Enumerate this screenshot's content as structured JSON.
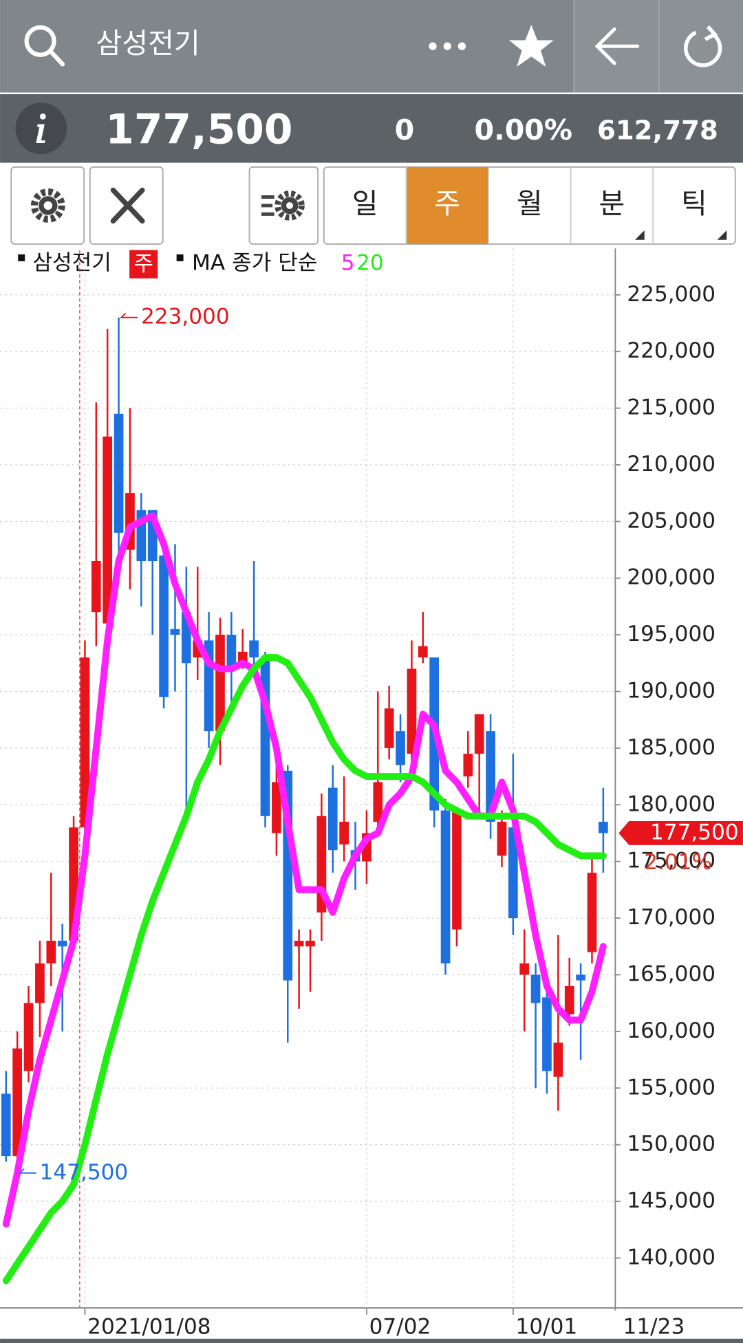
{
  "header": {
    "title": "삼성전기"
  },
  "quote": {
    "price": "177,500",
    "change": "0",
    "change_rate": "0.00%",
    "volume": "612,778"
  },
  "periods": [
    "일",
    "주",
    "월",
    "분",
    "틱"
  ],
  "selected_period_index": 1,
  "chart_data": {
    "type": "candlestick",
    "legend": {
      "symbol": "삼성전기",
      "period": "주",
      "ma_label": "MA 종가 단순"
    },
    "categories": [
      null,
      null,
      null,
      null,
      null,
      null,
      null,
      "2021/01/08",
      null,
      null,
      null,
      null,
      null,
      null,
      null,
      null,
      null,
      null,
      null,
      null,
      null,
      null,
      null,
      null,
      null,
      null,
      null,
      null,
      null,
      null,
      null,
      null,
      "07/02",
      null,
      null,
      null,
      null,
      null,
      null,
      null,
      null,
      null,
      null,
      null,
      null,
      "10/01",
      null,
      null,
      null,
      null,
      null,
      null,
      null,
      "11/23"
    ],
    "open": [
      154500,
      149000,
      156500,
      162500,
      166000,
      168000,
      168000,
      178000,
      197000,
      196000,
      214500,
      202500,
      206000,
      206000,
      202000,
      195500,
      197000,
      193000,
      194500,
      186500,
      195000,
      192500,
      194500,
      193000,
      177500,
      183000,
      167500,
      167500,
      170500,
      181500,
      176500,
      176000,
      175000,
      178500,
      185000,
      186500,
      184500,
      193000,
      193000,
      179500,
      169000,
      182500,
      184500,
      186500,
      175500,
      178000,
      165000,
      165000,
      163000,
      156000,
      161500,
      165000,
      167000,
      178500
    ],
    "high": [
      156500,
      160000,
      164000,
      168000,
      174000,
      169500,
      179000,
      194500,
      215500,
      222000,
      223000,
      215000,
      207500,
      206000,
      203500,
      203000,
      201000,
      201000,
      197000,
      196500,
      197000,
      195500,
      201500,
      193500,
      183500,
      183500,
      169000,
      169000,
      181000,
      183500,
      182500,
      178500,
      179500,
      190000,
      190500,
      188000,
      194500,
      197000,
      193000,
      180500,
      179500,
      186500,
      188000,
      188000,
      179500,
      184500,
      169000,
      166000,
      164500,
      168500,
      166500,
      166000,
      175500,
      181500
    ],
    "low": [
      148500,
      147500,
      155500,
      159500,
      164000,
      160000,
      167500,
      177000,
      194000,
      193000,
      201000,
      199000,
      197500,
      195000,
      188500,
      190000,
      179500,
      191000,
      185000,
      183500,
      189000,
      192000,
      191500,
      178000,
      175500,
      159000,
      162000,
      163500,
      168000,
      174000,
      175000,
      172500,
      173000,
      178000,
      184000,
      182000,
      183500,
      192500,
      178000,
      165000,
      167500,
      181500,
      179000,
      177000,
      174500,
      168500,
      160000,
      155000,
      154500,
      153000,
      160500,
      157500,
      166000,
      174000
    ],
    "close": [
      149000,
      158500,
      162500,
      166000,
      168000,
      167500,
      178000,
      193000,
      201500,
      212500,
      204000,
      207500,
      201500,
      201500,
      189500,
      195000,
      192500,
      194500,
      186500,
      195000,
      192000,
      193500,
      193000,
      179000,
      182000,
      164500,
      168000,
      168000,
      179000,
      176000,
      178500,
      175000,
      177500,
      182000,
      188500,
      183500,
      192000,
      194000,
      179500,
      166000,
      179500,
      184500,
      188000,
      178500,
      178500,
      170000,
      166000,
      162500,
      156500,
      159000,
      164000,
      164500,
      174000,
      177500
    ],
    "up_color": "#e8141c",
    "down_color": "#1e6fe0",
    "series": [
      {
        "name": "5",
        "color": "#ff1fff",
        "values": [
          143000,
          147500,
          153000,
          157500,
          161000,
          164500,
          168000,
          175500,
          185000,
          194500,
          201500,
          204500,
          205000,
          205500,
          203000,
          199500,
          197000,
          194500,
          192500,
          192000,
          192000,
          192500,
          192000,
          189000,
          185000,
          178500,
          172500,
          172500,
          172500,
          170500,
          173500,
          175500,
          177000,
          177500,
          180000,
          181000,
          182500,
          188000,
          187000,
          183000,
          182000,
          180500,
          179000,
          179000,
          182000,
          179500,
          174000,
          168500,
          164000,
          162000,
          161000,
          161000,
          163500,
          167500
        ]
      },
      {
        "name": "20",
        "color": "#22ee14",
        "values": [
          138000,
          139500,
          141000,
          142500,
          144000,
          145000,
          146500,
          150000,
          154000,
          158000,
          161500,
          165000,
          168500,
          171500,
          174000,
          176500,
          179000,
          182000,
          184000,
          186500,
          188500,
          190500,
          192000,
          193000,
          193000,
          192500,
          191000,
          189500,
          187500,
          185500,
          184000,
          183000,
          182500,
          182500,
          182500,
          182500,
          182500,
          182000,
          181000,
          180000,
          179500,
          179000,
          179000,
          179000,
          179000,
          179000,
          179000,
          178500,
          177500,
          176500,
          176000,
          175500,
          175500,
          175500
        ]
      }
    ],
    "ylim": [
      135600,
      229100
    ],
    "yticks": [
      {
        "value": 140000,
        "label": "140,000"
      },
      {
        "value": 145000,
        "label": "145,000"
      },
      {
        "value": 150000,
        "label": "150,000"
      },
      {
        "value": 155000,
        "label": "155,000"
      },
      {
        "value": 160000,
        "label": "160,000"
      },
      {
        "value": 165000,
        "label": "165,000"
      },
      {
        "value": 170000,
        "label": "170,000"
      },
      {
        "value": 175000,
        "label": "175,000"
      },
      {
        "value": 180000,
        "label": "180,000"
      },
      {
        "value": 185000,
        "label": "185,000"
      },
      {
        "value": 190000,
        "label": "190,000"
      },
      {
        "value": 195000,
        "label": "195,000"
      },
      {
        "value": 200000,
        "label": "200,000"
      },
      {
        "value": 205000,
        "label": "205,000"
      },
      {
        "value": 210000,
        "label": "210,000"
      },
      {
        "value": 215000,
        "label": "215,000"
      },
      {
        "value": 220000,
        "label": "220,000"
      },
      {
        "value": 225000,
        "label": "225,000"
      }
    ],
    "grid": true,
    "annotations": [
      {
        "value": 223000,
        "label": "223,000",
        "kind": "high"
      },
      {
        "value": 147500,
        "label": "147,500",
        "kind": "low"
      }
    ],
    "last_price": {
      "value": 177500,
      "label": "177,500"
    },
    "last_change": "2.01%"
  }
}
